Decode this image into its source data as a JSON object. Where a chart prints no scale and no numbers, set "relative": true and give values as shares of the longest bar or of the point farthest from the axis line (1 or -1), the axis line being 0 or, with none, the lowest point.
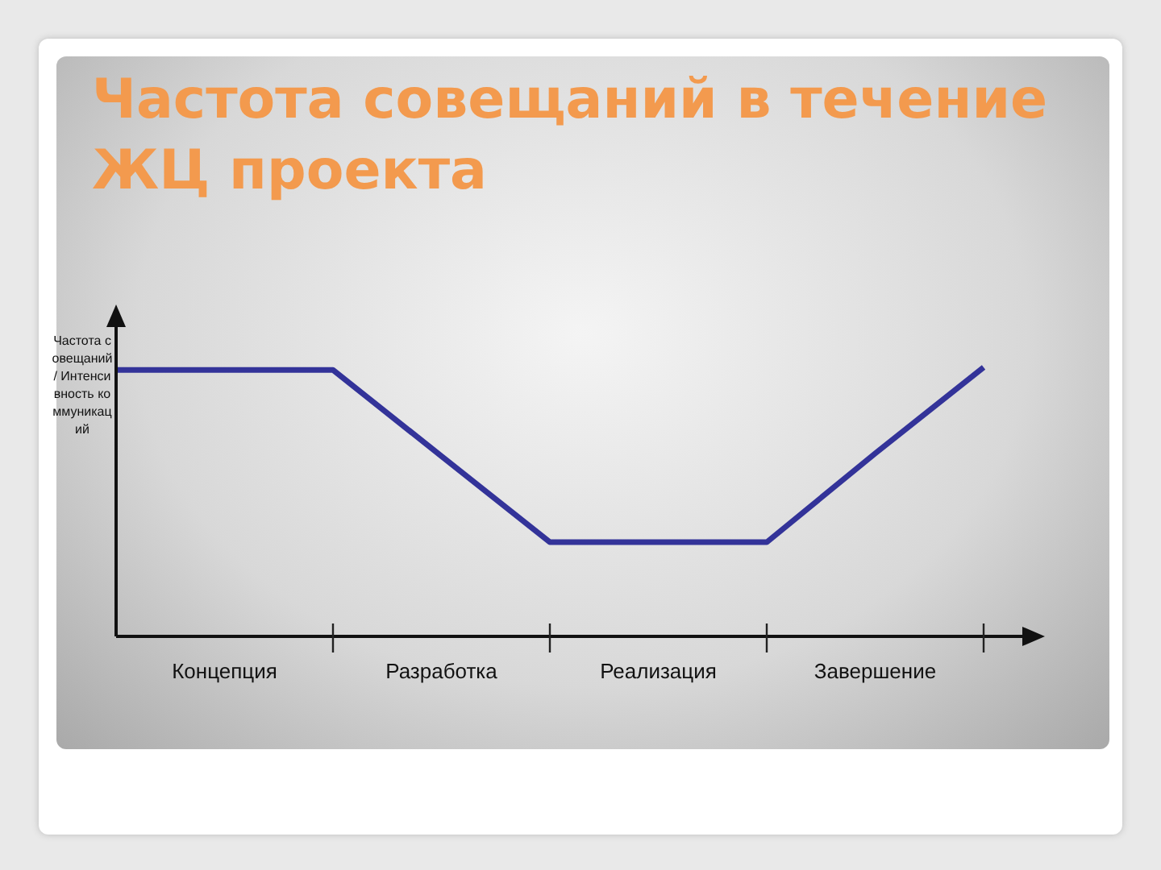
{
  "chart_data": {
    "type": "line",
    "title": "Частота совещаний в течение ЖЦ проекта",
    "ylabel": "Частота совещаний / Интенсивность коммуникаций",
    "relative": true,
    "categories": [
      null,
      "Концепция",
      null,
      "Разработка",
      null,
      "Реализация",
      null,
      "Завершение",
      null
    ],
    "series": [
      {
        "color": "#333399",
        "values": [
          0.99,
          0.99,
          0.99,
          0.67,
          0.35,
          0.35,
          0.35,
          0.68,
          1
        ]
      }
    ],
    "grid": false,
    "legend": false,
    "marker": "none",
    "line_style": "solid"
  }
}
